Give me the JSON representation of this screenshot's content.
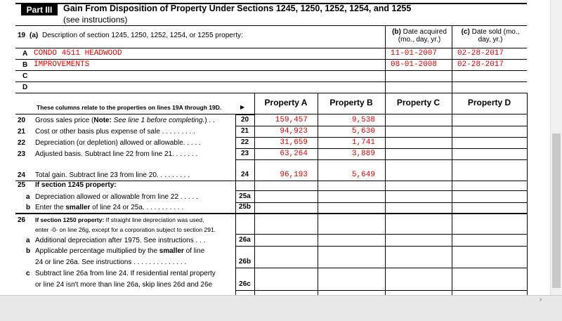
{
  "part": {
    "label": "Part III",
    "title": "Gain From Disposition of Property Under Sections 1245, 1250, 1252, 1254, and 1255",
    "subtitle": "(see instructions)"
  },
  "line19": {
    "number": "19",
    "label": "(a)",
    "text": "Description of section 1245, 1250, 1252, 1254, or 1255 property:",
    "col_b": {
      "label": "(b)",
      "text": "Date acquired (mo., day, yr.)"
    },
    "col_c": {
      "label": "(c)",
      "text": "Date sold (mo., day, yr.)"
    }
  },
  "properties": [
    {
      "letter": "A",
      "description": "CONDO 4511 HEADWOOD",
      "acquired": "11-01-2007",
      "sold": "02-28-2017"
    },
    {
      "letter": "B",
      "description": "IMPROVEMENTS",
      "acquired": "08-01-2008",
      "sold": "02-28-2017"
    },
    {
      "letter": "C"
    },
    {
      "letter": "D"
    }
  ],
  "columns": {
    "note": "These columns relate to the properties on lines 19A through 19D.",
    "arrow": "▶",
    "headers": [
      "Property A",
      "Property B",
      "Property C",
      "Property D"
    ]
  },
  "lines": [
    {
      "number": "20",
      "code": "20",
      "text": [
        [
          {
            "text": "Gross sales price ("
          },
          {
            "text": "Note:",
            "style": "b"
          },
          {
            "text": " "
          },
          {
            "text": "See line 1 before completing.",
            "style": "i"
          },
          {
            "text": ") . ."
          }
        ]
      ],
      "values": [
        "159,457",
        "9,538"
      ]
    },
    {
      "number": "21",
      "code": "21",
      "text": [
        [
          {
            "text": "Cost or other basis plus expense of sale . . . . . . . . ."
          }
        ]
      ],
      "values": [
        "94,923",
        "5,630"
      ]
    },
    {
      "number": "22",
      "code": "22",
      "text": [
        [
          {
            "text": "Depreciation (or depletion) allowed or allowable. . . . ."
          }
        ]
      ],
      "values": [
        "31,659",
        "1,741"
      ]
    },
    {
      "number": "23",
      "code": "23",
      "text": [
        [
          {
            "text": "Adjusted basis. Subtract line 22 from line 21. . . . . . ."
          }
        ]
      ],
      "values": [
        "63,264",
        "3,889"
      ]
    },
    {
      "number": "24",
      "code": "24",
      "text": [
        [
          {
            "text": "Total gain. Subtract line 23 from line 20. . . . . . . . ."
          }
        ]
      ],
      "values": [
        "96,193",
        "5,649"
      ]
    },
    {
      "number": "25",
      "text": [
        [
          {
            "text": "If section 1245 property:",
            "style": "b"
          }
        ]
      ]
    },
    {
      "number": "a",
      "code": "25a",
      "text": [
        [
          {
            "text": "Depreciation allowed or allowable from line 22 . . . . ."
          }
        ]
      ]
    },
    {
      "number": "b",
      "code": "25b",
      "text": [
        [
          {
            "text": "Enter the "
          },
          {
            "text": "smaller",
            "style": "b"
          },
          {
            "text": " of line 24 or 25a. . . . . . . . . . ."
          }
        ]
      ]
    },
    {
      "number": "26",
      "text": [
        [
          {
            "text": "If section 1250 property:",
            "style": "b"
          },
          {
            "text": " If straight line depreciation was used,"
          }
        ],
        [
          {
            "text": "enter -0- on line 26g, except for a corporation subject to section 291."
          }
        ]
      ],
      "small": true
    },
    {
      "number": "a",
      "code": "26a",
      "text": [
        [
          {
            "text": "Additional depreciation after 1975. See instructions . . ."
          }
        ]
      ]
    },
    {
      "number": "b",
      "code": "26b",
      "text": [
        [
          {
            "text": "Applicable percentage multiplied by the "
          },
          {
            "text": "smaller",
            "style": "b"
          },
          {
            "text": " of line"
          }
        ],
        [
          {
            "text": "24 or line 26a. See instructions . . . . . . . . . . . . . ."
          }
        ]
      ]
    },
    {
      "number": "c",
      "code": "26c",
      "text": [
        [
          {
            "text": "Subtract line 26a from line 24. If residential rental property"
          }
        ],
        [
          {
            "text": "or line 24 isn't more than line 26a, skip lines 26d and 26e"
          }
        ]
      ]
    }
  ]
}
